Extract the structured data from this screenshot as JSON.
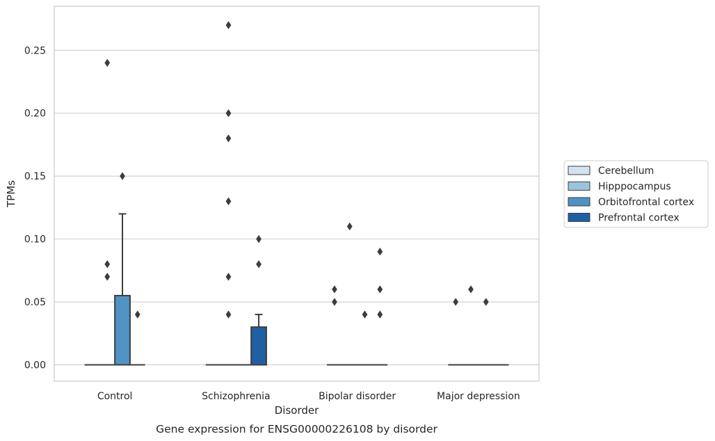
{
  "chart_data": {
    "type": "box",
    "xlabel": "Disorder",
    "ylabel": "TPMs",
    "caption": "Gene expression for ENSG00000226108 by disorder",
    "categories": [
      "Control",
      "Schizophrenia",
      "Bipolar disorder",
      "Major depression"
    ],
    "ylim": [
      -0.013,
      0.285
    ],
    "yticks": [
      0.0,
      0.05,
      0.1,
      0.15,
      0.2,
      0.25
    ],
    "ytick_labels": [
      "0.00",
      "0.05",
      "0.10",
      "0.15",
      "0.20",
      "0.25"
    ],
    "grid": "horizontal",
    "legend_position": "right",
    "series": [
      {
        "name": "Cerebellum",
        "color": "#d3e3f1",
        "boxes": [
          {
            "category": "Control",
            "q1": 0.0,
            "median": 0.0,
            "q3": 0.0,
            "whisker_low": 0.0,
            "whisker_high": 0.0,
            "outliers": []
          },
          {
            "category": "Schizophrenia",
            "q1": 0.0,
            "median": 0.0,
            "q3": 0.0,
            "whisker_low": 0.0,
            "whisker_high": 0.0,
            "outliers": []
          },
          {
            "category": "Bipolar disorder",
            "q1": 0.0,
            "median": 0.0,
            "q3": 0.0,
            "whisker_low": 0.0,
            "whisker_high": 0.0,
            "outliers": [
              0.06,
              0.05
            ]
          },
          {
            "category": "Major depression",
            "q1": 0.0,
            "median": 0.0,
            "q3": 0.0,
            "whisker_low": 0.0,
            "whisker_high": 0.0,
            "outliers": [
              0.05
            ]
          }
        ]
      },
      {
        "name": "Hipppocampus",
        "color": "#9ac4de",
        "boxes": [
          {
            "category": "Control",
            "q1": 0.0,
            "median": 0.0,
            "q3": 0.0,
            "whisker_low": 0.0,
            "whisker_high": 0.0,
            "outliers": [
              0.08,
              0.24,
              0.07
            ]
          },
          {
            "category": "Schizophrenia",
            "q1": 0.0,
            "median": 0.0,
            "q3": 0.0,
            "whisker_low": 0.0,
            "whisker_high": 0.0,
            "outliers": [
              0.27,
              0.2,
              0.18,
              0.13,
              0.07,
              0.04
            ]
          },
          {
            "category": "Bipolar disorder",
            "q1": 0.0,
            "median": 0.0,
            "q3": 0.0,
            "whisker_low": 0.0,
            "whisker_high": 0.0,
            "outliers": [
              0.11
            ]
          },
          {
            "category": "Major depression",
            "q1": 0.0,
            "median": 0.0,
            "q3": 0.0,
            "whisker_low": 0.0,
            "whisker_high": 0.0,
            "outliers": [
              0.06
            ]
          }
        ]
      },
      {
        "name": "Orbitofrontal cortex",
        "color": "#5093c3",
        "boxes": [
          {
            "category": "Control",
            "q1": 0.0,
            "median": 0.0,
            "q3": 0.055,
            "whisker_low": 0.0,
            "whisker_high": 0.12,
            "outliers": [
              0.15
            ]
          },
          {
            "category": "Schizophrenia",
            "q1": 0.0,
            "median": 0.0,
            "q3": 0.0,
            "whisker_low": 0.0,
            "whisker_high": 0.0,
            "outliers": []
          },
          {
            "category": "Bipolar disorder",
            "q1": 0.0,
            "median": 0.0,
            "q3": 0.0,
            "whisker_low": 0.0,
            "whisker_high": 0.0,
            "outliers": [
              0.04
            ]
          },
          {
            "category": "Major depression",
            "q1": 0.0,
            "median": 0.0,
            "q3": 0.0,
            "whisker_low": 0.0,
            "whisker_high": 0.0,
            "outliers": [
              0.05
            ]
          }
        ]
      },
      {
        "name": "Prefrontal cortex",
        "color": "#1f60a2",
        "boxes": [
          {
            "category": "Control",
            "q1": 0.0,
            "median": 0.0,
            "q3": 0.0,
            "whisker_low": 0.0,
            "whisker_high": 0.0,
            "outliers": [
              0.04
            ]
          },
          {
            "category": "Schizophrenia",
            "q1": 0.0,
            "median": 0.0,
            "q3": 0.03,
            "whisker_low": 0.0,
            "whisker_high": 0.04,
            "outliers": [
              0.1,
              0.08
            ]
          },
          {
            "category": "Bipolar disorder",
            "q1": 0.0,
            "median": 0.0,
            "q3": 0.0,
            "whisker_low": 0.0,
            "whisker_high": 0.0,
            "outliers": [
              0.09,
              0.06,
              0.04
            ]
          },
          {
            "category": "Major depression",
            "q1": 0.0,
            "median": 0.0,
            "q3": 0.0,
            "whisker_low": 0.0,
            "whisker_high": 0.0,
            "outliers": []
          }
        ]
      }
    ]
  }
}
